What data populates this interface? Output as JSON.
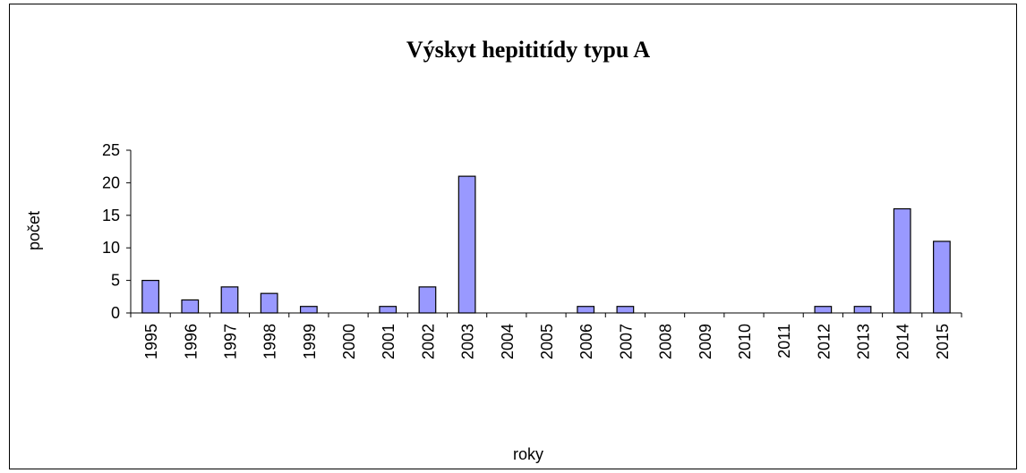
{
  "chart_data": {
    "type": "bar",
    "title": "Výskyt hepititídy typu A",
    "x_label": "roky",
    "y_label": "počet",
    "categories": [
      "1995",
      "1996",
      "1997",
      "1998",
      "1999",
      "2000",
      "2001",
      "2002",
      "2003",
      "2004",
      "2005",
      "2006",
      "2007",
      "2008",
      "2009",
      "2010",
      "2011",
      "2012",
      "2013",
      "2014",
      "2015"
    ],
    "values": [
      5,
      2,
      4,
      3,
      1,
      0,
      1,
      4,
      21,
      0,
      0,
      1,
      1,
      0,
      0,
      0,
      0,
      1,
      1,
      16,
      11
    ],
    "color": "#9999ff",
    "ylim": [
      0,
      25
    ],
    "yticks": [
      0,
      5,
      10,
      15,
      20,
      25
    ],
    "grid": false
  }
}
